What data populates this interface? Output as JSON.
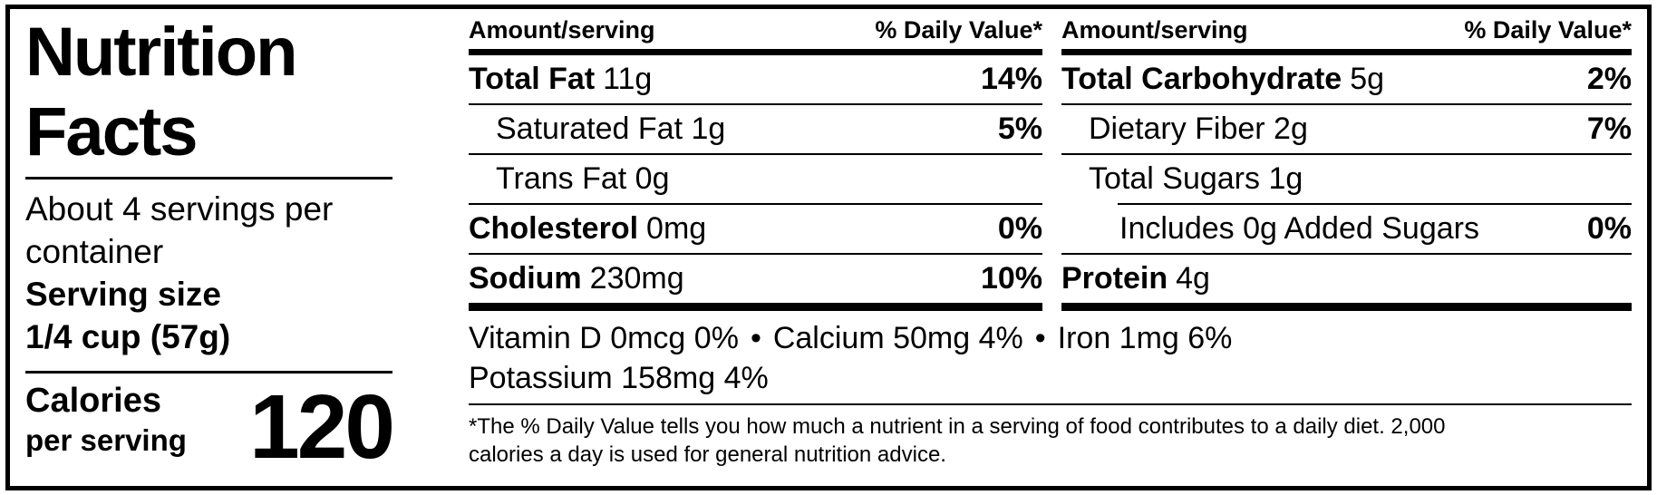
{
  "colors": {
    "text": "#000000",
    "background": "#ffffff",
    "border": "#000000"
  },
  "left_panel": {
    "title_line1": "Nutrition",
    "title_line2": "Facts",
    "servings_per_container": "About 4 servings per container",
    "serving_size_label": "Serving size",
    "serving_size_value": "1/4 cup (57g)",
    "calories_label": "Calories",
    "calories_sublabel": "per serving",
    "calories_value": "120"
  },
  "table_headers": {
    "amount": "Amount/serving",
    "daily_value": "% Daily Value*"
  },
  "fat_column": {
    "rows": [
      {
        "bold": "Total Fat",
        "amount": "11g",
        "dv": "14%"
      },
      {
        "bold": "",
        "amount": "Saturated Fat 1g",
        "dv": "5%"
      },
      {
        "bold": "",
        "amount": "Trans Fat 0g",
        "dv": ""
      },
      {
        "bold": "Cholesterol",
        "amount": "0mg",
        "dv": "0%"
      },
      {
        "bold": "Sodium",
        "amount": "230mg",
        "dv": "10%"
      }
    ]
  },
  "carb_column": {
    "rows": [
      {
        "bold": "Total Carbohydrate",
        "amount": "5g",
        "dv": "2%"
      },
      {
        "bold": "",
        "amount": "Dietary Fiber 2g",
        "dv": "7%"
      },
      {
        "bold": "",
        "amount": "Total Sugars 1g",
        "dv": ""
      },
      {
        "bold": "",
        "amount": "Includes 0g Added Sugars",
        "dv": "0%"
      },
      {
        "bold": "Protein",
        "amount": "4g",
        "dv": ""
      }
    ]
  },
  "micronutrients": {
    "bullet": "•",
    "line1_items": [
      "Vitamin D 0mcg 0%",
      "Calcium 50mg 4%",
      "Iron 1mg 6%"
    ],
    "line2": "Potassium 158mg 4%"
  },
  "footnote": "*The % Daily Value tells you how much a nutrient in a serving of food contributes to a daily diet. 2,000\ncalories a day is used for general nutrition advice."
}
